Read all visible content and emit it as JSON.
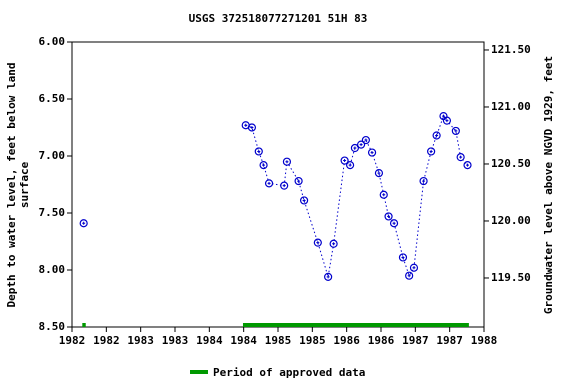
{
  "chart_data": {
    "type": "scatter",
    "title": "USGS 372518077271201 51H 83",
    "ylabel": [
      "Depth to water level, feet below land",
      "surface"
    ],
    "y2label": "Groundwater level above NGVD 1929, feet",
    "xlim": [
      1982,
      1988
    ],
    "xticks": [
      1982,
      {
        "value": 1982.5,
        "label": "1982"
      },
      1983,
      {
        "value": 1983.5,
        "label": "1983"
      },
      1984,
      {
        "value": 1984.5,
        "label": "1984"
      },
      1985,
      {
        "value": 1985.5,
        "label": "1985"
      },
      1986,
      {
        "value": 1986.5,
        "label": "1986"
      },
      1987,
      {
        "value": 1987.5,
        "label": "1987"
      },
      1988
    ],
    "ylim": [
      6,
      8.5
    ],
    "inverted_y": true,
    "yticks": [
      {
        "value": 6,
        "label": "6.00"
      },
      {
        "value": 6.5,
        "label": "6.50"
      },
      {
        "value": 7,
        "label": "7.00"
      },
      {
        "value": 7.5,
        "label": "7.50"
      },
      {
        "value": 8,
        "label": "8.00"
      },
      {
        "value": 8.5,
        "label": "8.50"
      }
    ],
    "y2lim": [
      119.07,
      121.57
    ],
    "y2ticks": [
      {
        "value": 119.5,
        "label": "119.50"
      },
      {
        "value": 120,
        "label": "120.00"
      },
      {
        "value": 120.5,
        "label": "120.50"
      },
      {
        "value": 121,
        "label": "121.00"
      },
      {
        "value": 121.5,
        "label": "121.50"
      }
    ],
    "series": [
      {
        "color": "#0000cc",
        "line_style": "dotted",
        "x": [
          1982.17
        ],
        "values": [
          7.59
        ]
      },
      {
        "color": "#0000cc",
        "line_style": "dotted",
        "x": [
          1984.53,
          1984.62,
          1984.72,
          1984.79,
          1984.87,
          1985.09,
          1985.13,
          1985.3,
          1985.38,
          1985.58,
          1985.73,
          1985.81,
          1985.97,
          1986.05,
          1986.12,
          1986.21,
          1986.28,
          1986.37,
          1986.47,
          1986.54,
          1986.61,
          1986.69,
          1986.82,
          1986.91,
          1986.98,
          1987.12,
          1987.23,
          1987.31,
          1987.41,
          1987.46,
          1987.59,
          1987.66,
          1987.76
        ],
        "values": [
          6.73,
          6.75,
          6.96,
          7.08,
          7.24,
          7.26,
          7.05,
          7.22,
          7.39,
          7.76,
          8.06,
          7.77,
          7.04,
          7.08,
          6.93,
          6.9,
          6.86,
          6.97,
          7.15,
          7.34,
          7.53,
          7.59,
          7.89,
          8.05,
          7.98,
          7.22,
          6.96,
          6.82,
          6.65,
          6.69,
          6.78,
          7.01,
          7.08
        ]
      }
    ],
    "approved": {
      "name": "Period of approved data",
      "color": "#009900",
      "periods": [
        [
          1982.15,
          1982.2
        ],
        [
          1984.49,
          1987.78
        ]
      ]
    }
  }
}
